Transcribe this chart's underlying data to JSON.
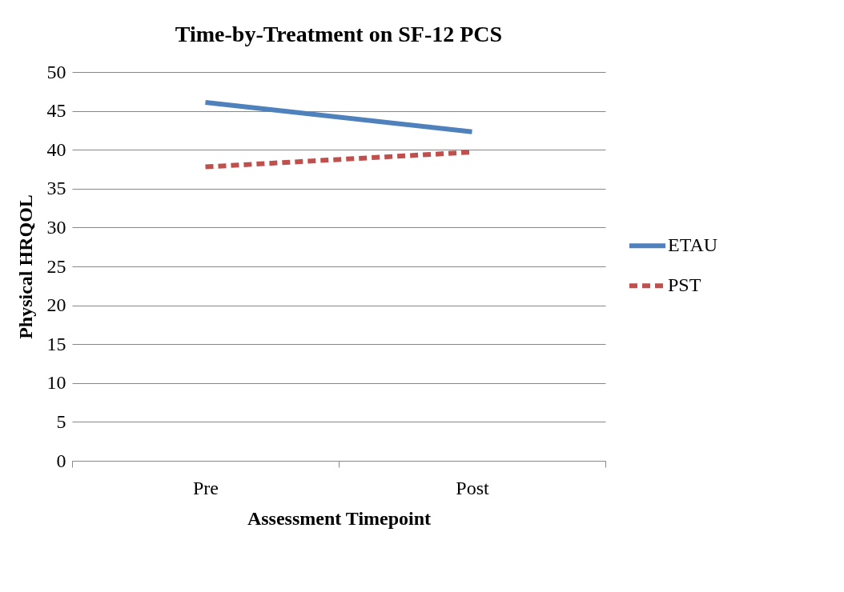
{
  "chart_data": {
    "type": "line",
    "title": "Time-by-Treatment on SF-12 PCS",
    "xlabel": "Assessment Timepoint",
    "ylabel": "Physical HRQOL",
    "categories": [
      "Pre",
      "Post"
    ],
    "series": [
      {
        "name": "ETAU",
        "color": "#4f81bd",
        "values": [
          46.1,
          42.3
        ],
        "line_style": "solid"
      },
      {
        "name": "PST",
        "color": "#c0504d",
        "values": [
          37.8,
          39.7
        ],
        "line_style": "dashed"
      }
    ],
    "ylim": [
      0,
      50
    ],
    "yticks": [
      0,
      5,
      10,
      15,
      20,
      25,
      30,
      35,
      40,
      45,
      50
    ],
    "grid": "y",
    "legend": "right",
    "marker": "none"
  }
}
